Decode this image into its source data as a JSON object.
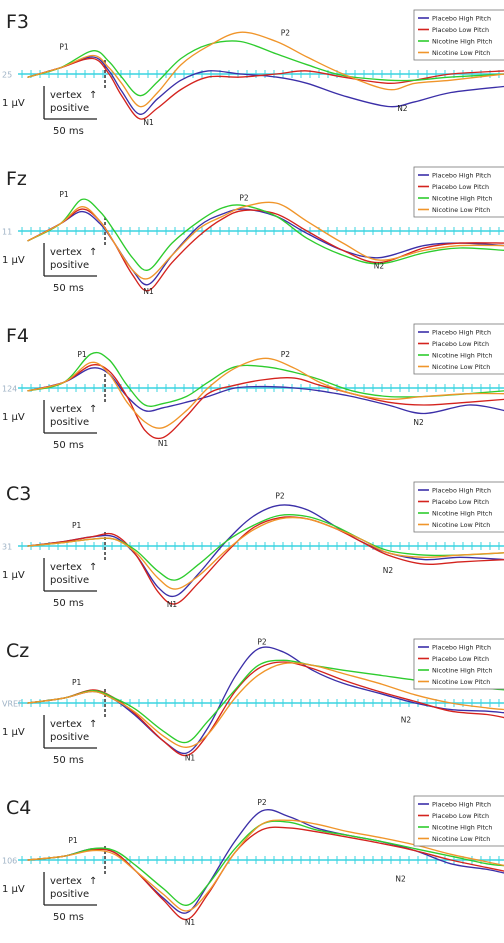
{
  "legend_entries": [
    {
      "label": "Placebo High Pitch",
      "color": "#3b2fa8"
    },
    {
      "label": "Placebo Low Pitch",
      "color": "#d4231e"
    },
    {
      "label": "Nicotine High Pitch",
      "color": "#2ecc2e"
    },
    {
      "label": "Nicotine Low Pitch",
      "color": "#f0952a"
    }
  ],
  "scale_bar": {
    "amplitude": "1 µV",
    "polarity_line1": "vertex",
    "polarity_arrow": "↑",
    "polarity_line2": "positive",
    "time": "50 ms"
  },
  "chart_data": [
    {
      "type": "line",
      "title": "F3",
      "baseline_label": "25",
      "peak_labels": [
        {
          "text": "P1",
          "x": 0.2,
          "y": 0.8
        },
        {
          "text": "N1",
          "x": 0.67,
          "y": -1.65
        },
        {
          "text": "P2",
          "x": 1.43,
          "y": 1.25
        },
        {
          "text": "N2",
          "x": 2.08,
          "y": -1.2
        }
      ],
      "x": [
        0.0,
        0.18,
        0.36,
        0.45,
        0.52,
        0.62,
        0.72,
        0.85,
        1.0,
        1.18,
        1.38,
        1.55,
        1.75,
        2.0,
        2.15,
        2.35,
        2.65
      ],
      "ylim": [
        -2.2,
        2.0
      ],
      "series": [
        {
          "name": "Placebo High Pitch",
          "values": [
            -0.1,
            0.2,
            0.55,
            0.1,
            -0.55,
            -1.3,
            -0.8,
            -0.2,
            0.1,
            0.0,
            -0.1,
            -0.3,
            -0.7,
            -1.05,
            -0.9,
            -0.6,
            -0.4
          ]
        },
        {
          "name": "Placebo Low Pitch",
          "values": [
            -0.1,
            0.2,
            0.5,
            0.0,
            -0.7,
            -1.45,
            -1.1,
            -0.5,
            -0.1,
            -0.1,
            0.0,
            0.1,
            -0.1,
            -0.3,
            -0.2,
            0.0,
            0.1
          ]
        },
        {
          "name": "Nicotine High Pitch",
          "values": [
            -0.1,
            0.2,
            0.75,
            0.4,
            -0.1,
            -0.7,
            -0.25,
            0.5,
            0.95,
            1.05,
            0.65,
            0.3,
            -0.05,
            -0.2,
            -0.2,
            -0.1,
            0.0
          ]
        },
        {
          "name": "Nicotine Low Pitch",
          "values": [
            -0.1,
            0.2,
            0.6,
            0.2,
            -0.3,
            -1.05,
            -0.6,
            0.3,
            0.9,
            1.35,
            1.05,
            0.55,
            0.0,
            -0.5,
            -0.3,
            -0.2,
            0.0
          ]
        }
      ]
    },
    {
      "type": "line",
      "title": "Fz",
      "baseline_label": "11",
      "peak_labels": [
        {
          "text": "P1",
          "x": 0.2,
          "y": 1.4
        },
        {
          "text": "N1",
          "x": 0.67,
          "y": -2.6
        },
        {
          "text": "P2",
          "x": 1.2,
          "y": 1.25
        },
        {
          "text": "N2",
          "x": 1.95,
          "y": -1.55
        }
      ],
      "x": [
        0.0,
        0.18,
        0.3,
        0.4,
        0.48,
        0.58,
        0.67,
        0.8,
        0.95,
        1.08,
        1.2,
        1.38,
        1.55,
        1.75,
        1.95,
        2.2,
        2.4,
        2.65
      ],
      "ylim": [
        -2.8,
        2.1
      ],
      "series": [
        {
          "name": "Placebo High Pitch",
          "values": [
            -0.4,
            0.3,
            0.8,
            0.3,
            -0.5,
            -1.6,
            -2.2,
            -1.0,
            0.2,
            0.7,
            0.9,
            0.6,
            -0.1,
            -0.8,
            -1.1,
            -0.6,
            -0.5,
            -0.6
          ]
        },
        {
          "name": "Placebo Low Pitch",
          "values": [
            -0.4,
            0.3,
            0.9,
            0.4,
            -0.5,
            -1.8,
            -2.45,
            -1.3,
            -0.2,
            0.5,
            0.85,
            0.7,
            0.0,
            -0.8,
            -1.3,
            -0.7,
            -0.5,
            -0.5
          ]
        },
        {
          "name": "Nicotine High Pitch",
          "values": [
            -0.4,
            0.3,
            1.3,
            0.8,
            0.0,
            -1.1,
            -1.6,
            -0.5,
            0.4,
            0.95,
            1.05,
            0.6,
            -0.3,
            -1.0,
            -1.35,
            -0.9,
            -0.7,
            -0.8
          ]
        },
        {
          "name": "Nicotine Low Pitch",
          "values": [
            -0.4,
            0.3,
            1.0,
            0.4,
            -0.5,
            -1.6,
            -1.95,
            -1.0,
            0.1,
            0.6,
            1.0,
            1.15,
            0.4,
            -0.5,
            -1.2,
            -0.8,
            -0.6,
            -0.6
          ]
        }
      ]
    },
    {
      "type": "line",
      "title": "F4",
      "baseline_label": "124",
      "peak_labels": [
        {
          "text": "P1",
          "x": 0.3,
          "y": 1.1
        },
        {
          "text": "N1",
          "x": 0.75,
          "y": -2.05
        },
        {
          "text": "P2",
          "x": 1.43,
          "y": 1.1
        },
        {
          "text": "N2",
          "x": 2.17,
          "y": -1.3
        }
      ],
      "x": [
        0.0,
        0.2,
        0.35,
        0.45,
        0.55,
        0.65,
        0.75,
        0.88,
        1.0,
        1.15,
        1.32,
        1.48,
        1.62,
        1.8,
        2.0,
        2.2,
        2.45,
        2.65
      ],
      "ylim": [
        -2.4,
        2.0
      ],
      "series": [
        {
          "name": "Placebo High Pitch",
          "values": [
            -0.1,
            0.2,
            0.7,
            0.5,
            -0.3,
            -0.8,
            -0.7,
            -0.5,
            -0.3,
            0.0,
            0.05,
            0.0,
            -0.1,
            -0.3,
            -0.6,
            -0.9,
            -0.6,
            -0.8
          ]
        },
        {
          "name": "Placebo Low Pitch",
          "values": [
            -0.1,
            0.2,
            0.8,
            0.6,
            -0.3,
            -1.5,
            -1.75,
            -1.0,
            -0.2,
            0.1,
            0.3,
            0.35,
            0.1,
            -0.2,
            -0.5,
            -0.6,
            -0.5,
            -0.4
          ]
        },
        {
          "name": "Nicotine High Pitch",
          "values": [
            -0.1,
            0.2,
            1.2,
            1.0,
            0.1,
            -0.6,
            -0.55,
            -0.3,
            0.2,
            0.75,
            0.75,
            0.55,
            0.3,
            -0.1,
            -0.3,
            -0.3,
            -0.2,
            -0.1
          ]
        },
        {
          "name": "Nicotine Low Pitch",
          "values": [
            -0.1,
            0.2,
            0.9,
            0.5,
            -0.5,
            -1.2,
            -1.4,
            -0.8,
            0.0,
            0.7,
            1.05,
            0.7,
            0.2,
            -0.2,
            -0.4,
            -0.3,
            -0.2,
            -0.2
          ]
        }
      ]
    },
    {
      "type": "line",
      "title": "C3",
      "baseline_label": "31",
      "peak_labels": [
        {
          "text": "P1",
          "x": 0.27,
          "y": 0.8
        },
        {
          "text": "N1",
          "x": 0.8,
          "y": -2.7
        },
        {
          "text": "P2",
          "x": 1.4,
          "y": 2.1
        },
        {
          "text": "N2",
          "x": 2.0,
          "y": -1.2
        }
      ],
      "x": [
        0.0,
        0.2,
        0.35,
        0.48,
        0.6,
        0.72,
        0.82,
        0.95,
        1.1,
        1.25,
        1.4,
        1.55,
        1.7,
        1.85,
        2.0,
        2.2,
        2.4,
        2.65
      ],
      "ylim": [
        -3.0,
        2.3
      ],
      "series": [
        {
          "name": "Placebo High Pitch",
          "values": [
            0.0,
            0.2,
            0.4,
            0.4,
            -0.4,
            -1.8,
            -2.2,
            -1.2,
            0.2,
            1.3,
            1.8,
            1.6,
            0.9,
            0.2,
            -0.3,
            -0.6,
            -0.5,
            -0.6
          ]
        },
        {
          "name": "Placebo Low Pitch",
          "values": [
            0.0,
            0.2,
            0.4,
            0.5,
            -0.4,
            -2.0,
            -2.55,
            -1.6,
            -0.3,
            0.8,
            1.25,
            1.2,
            0.8,
            0.2,
            -0.4,
            -0.8,
            -0.7,
            -0.6
          ]
        },
        {
          "name": "Nicotine High Pitch",
          "values": [
            0.0,
            0.15,
            0.3,
            0.3,
            -0.2,
            -1.1,
            -1.5,
            -0.8,
            0.2,
            0.9,
            1.35,
            1.3,
            0.9,
            0.3,
            -0.2,
            -0.4,
            -0.4,
            -0.3
          ]
        },
        {
          "name": "Nicotine Low Pitch",
          "values": [
            0.0,
            0.15,
            0.3,
            0.3,
            -0.3,
            -1.4,
            -1.9,
            -1.3,
            -0.2,
            0.7,
            1.2,
            1.2,
            0.8,
            0.3,
            -0.3,
            -0.5,
            -0.4,
            -0.3
          ]
        }
      ]
    },
    {
      "type": "line",
      "title": "Cz",
      "baseline_label": "VREF",
      "peak_labels": [
        {
          "text": "P1",
          "x": 0.27,
          "y": 1.1
        },
        {
          "text": "N1",
          "x": 0.9,
          "y": -3.5
        },
        {
          "text": "P2",
          "x": 1.3,
          "y": 3.55
        },
        {
          "text": "N2",
          "x": 2.1,
          "y": -1.2
        }
      ],
      "x": [
        0.0,
        0.2,
        0.36,
        0.48,
        0.6,
        0.75,
        0.88,
        1.0,
        1.15,
        1.28,
        1.42,
        1.58,
        1.75,
        1.95,
        2.15,
        2.35,
        2.55,
        2.65
      ],
      "ylim": [
        -3.7,
        3.9
      ],
      "series": [
        {
          "name": "Placebo High Pitch",
          "values": [
            0.0,
            0.3,
            0.7,
            0.2,
            -0.8,
            -2.3,
            -3.05,
            -1.5,
            1.6,
            3.3,
            3.1,
            2.0,
            1.2,
            0.6,
            0.0,
            -0.4,
            -0.5,
            -0.6
          ]
        },
        {
          "name": "Placebo Low Pitch",
          "values": [
            0.0,
            0.3,
            0.8,
            0.3,
            -0.7,
            -2.3,
            -3.2,
            -1.9,
            0.7,
            2.1,
            2.5,
            2.1,
            1.4,
            0.7,
            0.1,
            -0.5,
            -0.7,
            -0.9
          ]
        },
        {
          "name": "Nicotine High Pitch",
          "values": [
            0.0,
            0.3,
            0.75,
            0.3,
            -0.4,
            -1.7,
            -2.4,
            -1.1,
            0.8,
            2.3,
            2.6,
            2.3,
            2.0,
            1.7,
            1.4,
            1.2,
            0.9,
            0.8
          ]
        },
        {
          "name": "Nicotine Low Pitch",
          "values": [
            0.0,
            0.3,
            0.7,
            0.2,
            -0.6,
            -2.0,
            -2.7,
            -1.9,
            0.3,
            1.7,
            2.4,
            2.3,
            1.8,
            1.2,
            0.5,
            0.0,
            -0.3,
            -0.4
          ]
        }
      ]
    },
    {
      "type": "line",
      "title": "C4",
      "baseline_label": "106",
      "peak_labels": [
        {
          "text": "P1",
          "x": 0.25,
          "y": 0.9
        },
        {
          "text": "N1",
          "x": 0.9,
          "y": -3.45
        },
        {
          "text": "P2",
          "x": 1.3,
          "y": 2.9
        },
        {
          "text": "N2",
          "x": 2.07,
          "y": -1.15
        }
      ],
      "x": [
        0.0,
        0.2,
        0.36,
        0.48,
        0.6,
        0.75,
        0.88,
        1.0,
        1.15,
        1.3,
        1.45,
        1.6,
        1.78,
        1.95,
        2.15,
        2.35,
        2.55,
        2.65
      ],
      "ylim": [
        -3.6,
        3.2
      ],
      "series": [
        {
          "name": "Placebo High Pitch",
          "values": [
            0.0,
            0.2,
            0.6,
            0.4,
            -0.6,
            -2.0,
            -2.8,
            -1.3,
            1.0,
            2.6,
            2.3,
            1.7,
            1.3,
            1.0,
            0.5,
            -0.2,
            -0.5,
            -0.7
          ]
        },
        {
          "name": "Placebo Low Pitch",
          "values": [
            0.0,
            0.2,
            0.55,
            0.4,
            -0.6,
            -2.1,
            -3.15,
            -1.8,
            0.4,
            1.6,
            1.7,
            1.5,
            1.2,
            0.9,
            0.5,
            0.0,
            -0.4,
            -0.6
          ]
        },
        {
          "name": "Nicotine High Pitch",
          "values": [
            0.0,
            0.2,
            0.6,
            0.5,
            -0.3,
            -1.5,
            -2.4,
            -1.3,
            0.6,
            1.9,
            2.0,
            1.6,
            1.3,
            1.0,
            0.6,
            0.2,
            -0.2,
            -0.3
          ]
        },
        {
          "name": "Nicotine Low Pitch",
          "values": [
            0.0,
            0.2,
            0.5,
            0.3,
            -0.6,
            -1.8,
            -2.7,
            -1.7,
            0.4,
            1.9,
            2.1,
            1.9,
            1.5,
            1.2,
            0.8,
            0.3,
            -0.1,
            -0.3
          ]
        }
      ]
    }
  ]
}
